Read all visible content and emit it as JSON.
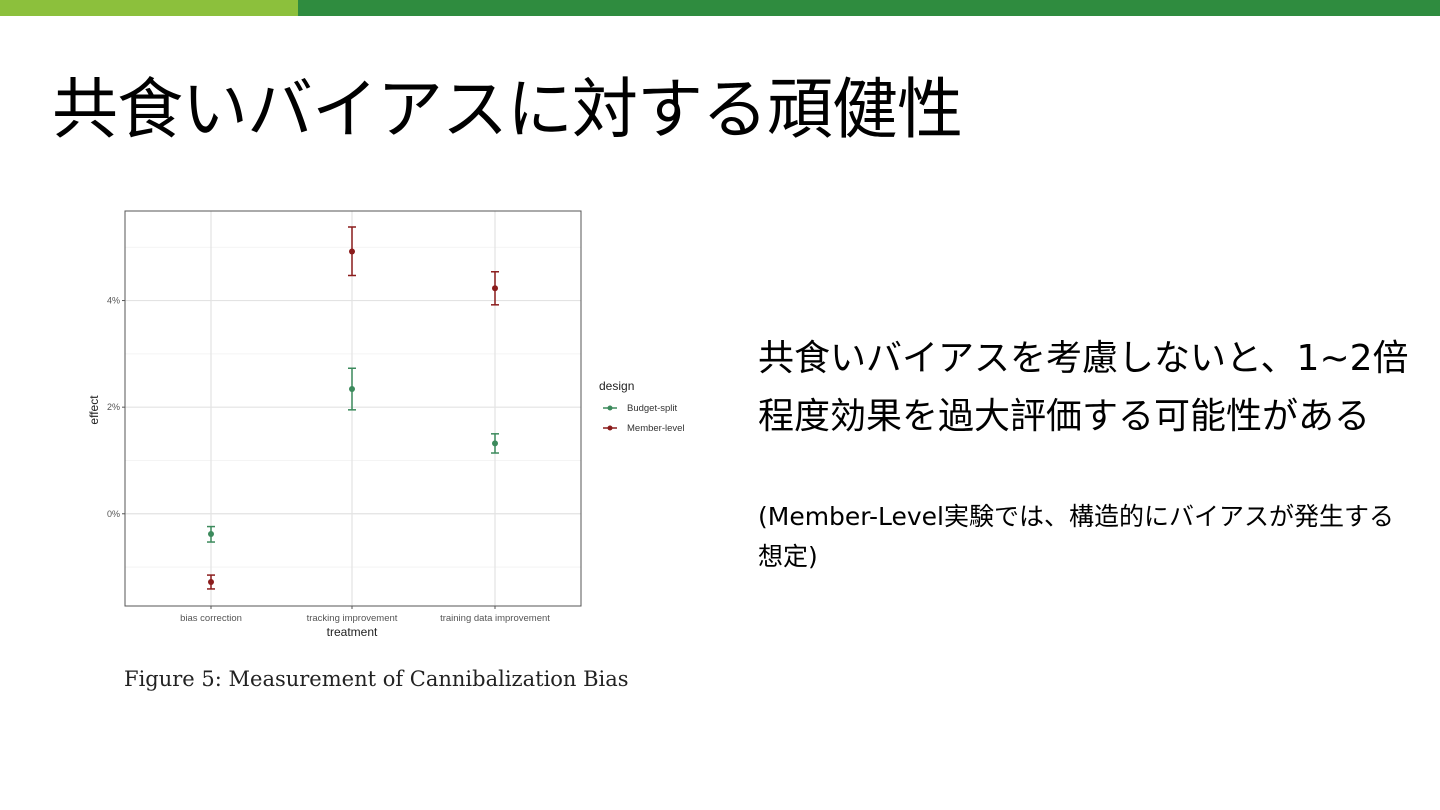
{
  "slide": {
    "title": "共食いバイアスに対する頑健性",
    "main_text": "共食いバイアスを考慮しないと、1~2倍程度効果を過大評価する可能性がある",
    "note_text": "(Member-Level実験では、構造的にバイアスが発生する想定)",
    "figure_caption": "Figure 5:  Measurement of Cannibalization Bias",
    "accent_colors": {
      "bar_light": "#8cc03c",
      "bar_dark": "#2f8c3f"
    }
  },
  "chart_data": {
    "type": "scatter",
    "subtype": "point with error bars",
    "title": "",
    "xlabel": "treatment",
    "ylabel": "effect",
    "categories": [
      "bias correction",
      "tracking improvement",
      "training data improvement"
    ],
    "ylim": [
      -1.73,
      5.68
    ],
    "y_ticks": [
      0,
      2,
      4
    ],
    "y_tick_labels": [
      "0%",
      "2%",
      "4%"
    ],
    "grid": true,
    "legend": {
      "title": "design",
      "position": "right"
    },
    "series": [
      {
        "name": "Budget-split",
        "color": "#3c8a5c",
        "values": [
          -0.38,
          2.34,
          1.32
        ],
        "lower": [
          -0.53,
          1.95,
          1.14
        ],
        "upper": [
          -0.24,
          2.73,
          1.5
        ]
      },
      {
        "name": "Member-level",
        "color": "#8b1c1c",
        "values": [
          -1.28,
          4.92,
          4.23
        ],
        "lower": [
          -1.41,
          4.47,
          3.92
        ],
        "upper": [
          -1.15,
          5.38,
          4.54
        ]
      }
    ]
  }
}
